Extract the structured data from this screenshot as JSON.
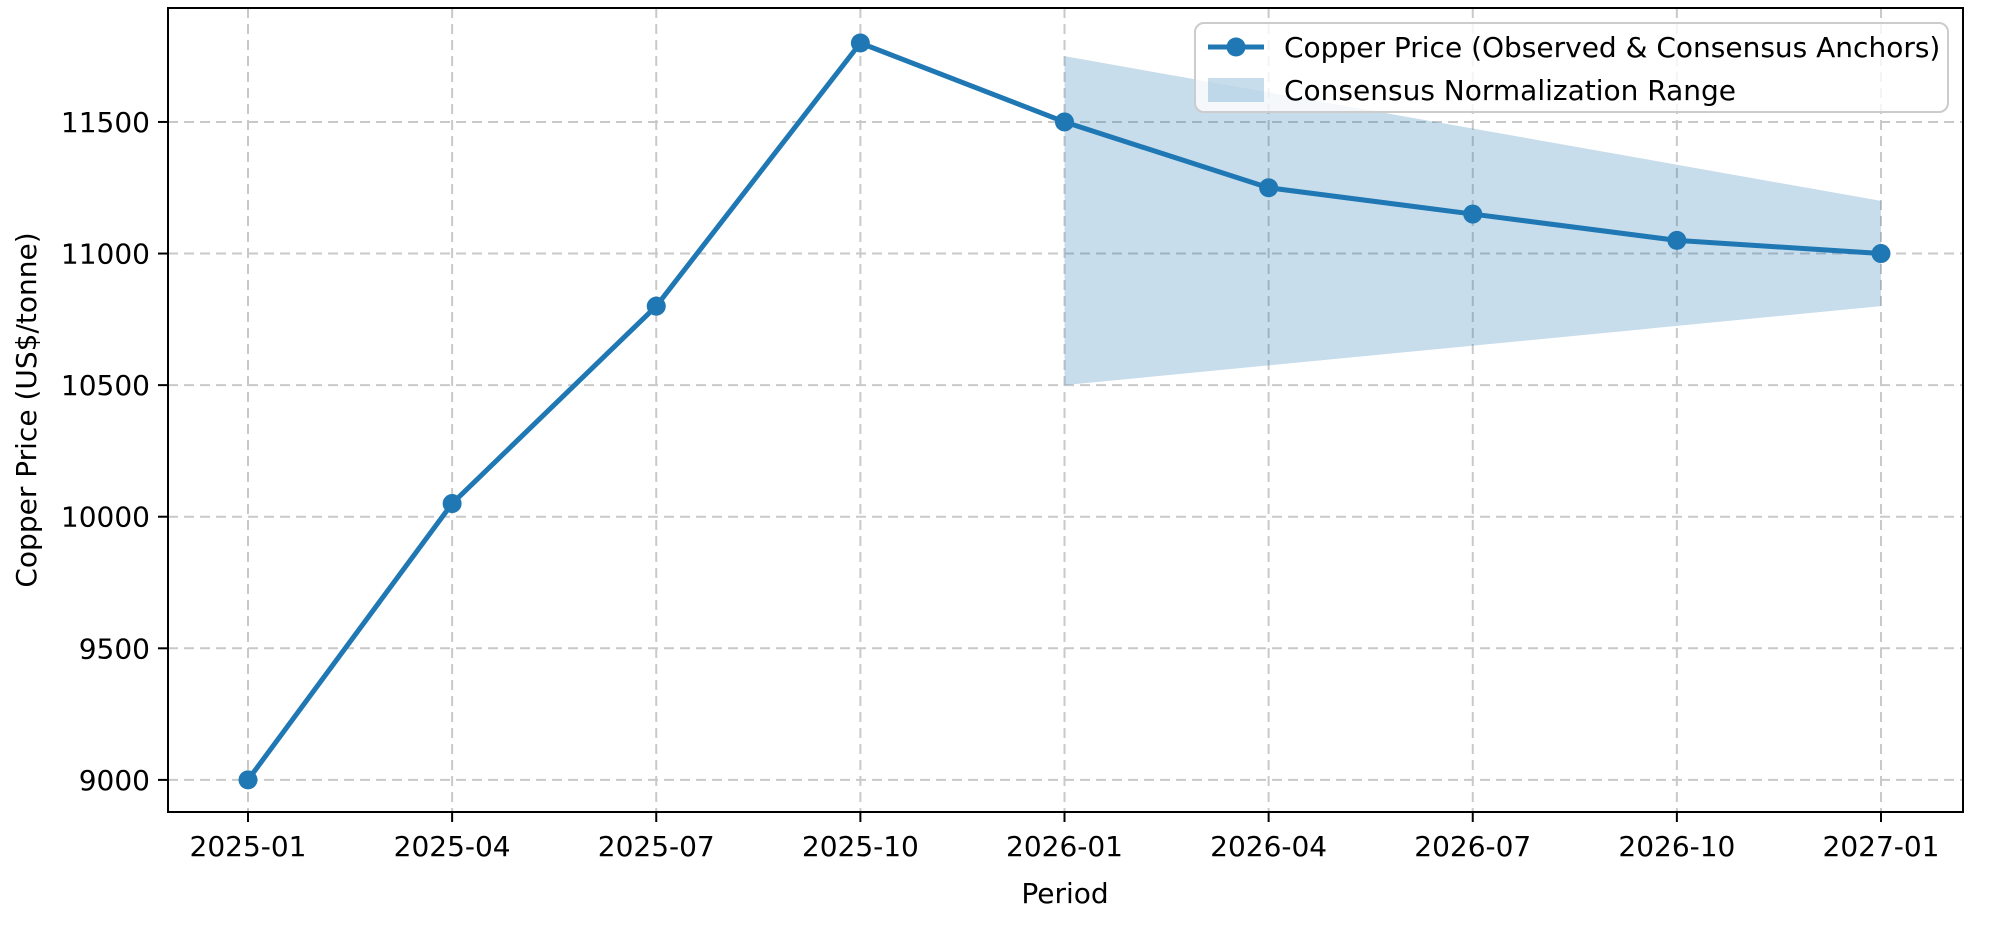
{
  "figure": {
    "background": "#ffffff"
  },
  "chart_data": {
    "type": "line",
    "title": "",
    "xlabel": "Period",
    "ylabel": "Copper Price (US$/tonne)",
    "categories": [
      "2025-01",
      "2025-04",
      "2025-07",
      "2025-10",
      "2026-01",
      "2026-04",
      "2026-07",
      "2026-10",
      "2027-01"
    ],
    "series": [
      {
        "name": "Copper Price (Observed & Consensus Anchors)",
        "values": [
          9000,
          10050,
          10800,
          11800,
          11500,
          11250,
          11150,
          11050,
          11000
        ],
        "color": "#1f77b4",
        "marker": "circle",
        "line_width": 5,
        "marker_radius": 9.5
      }
    ],
    "band": {
      "name": "Consensus Normalization Range",
      "x": [
        "2026-01",
        "2027-01"
      ],
      "upper": [
        11750,
        11200
      ],
      "lower": [
        10500,
        10800
      ],
      "color": "#1f77b4",
      "opacity": 0.25
    },
    "y_ticks": [
      9000,
      9500,
      10000,
      10500,
      11000,
      11500
    ],
    "ylim": [
      8878,
      11933
    ],
    "grid": true,
    "grid_style": "dashed",
    "grid_color": "#c9c9c9",
    "frame_color": "#000000",
    "legend_position": "upper right"
  }
}
